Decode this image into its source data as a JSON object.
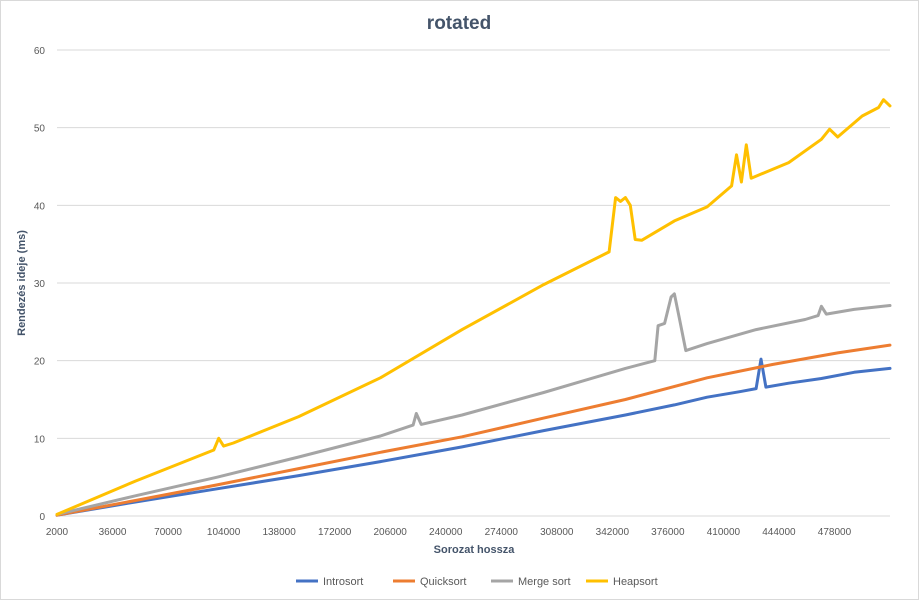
{
  "chart_data": {
    "type": "line",
    "title": "rotated",
    "xlabel": "Sorozat hossza",
    "ylabel": "Rendezés ideje (ms)",
    "xlim": [
      2000,
      512000
    ],
    "ylim": [
      0,
      60
    ],
    "yticks": [
      0,
      10,
      20,
      30,
      40,
      50,
      60
    ],
    "xticks": [
      2000,
      36000,
      70000,
      104000,
      138000,
      172000,
      206000,
      240000,
      274000,
      308000,
      342000,
      376000,
      410000,
      444000,
      478000
    ],
    "grid": "horizontal",
    "legend_position": "bottom",
    "series": [
      {
        "name": "Introsort",
        "color": "#4472c4",
        "points": [
          [
            2000,
            0.1
          ],
          [
            50000,
            1.8
          ],
          [
            100000,
            3.5
          ],
          [
            150000,
            5.2
          ],
          [
            200000,
            7.0
          ],
          [
            250000,
            8.9
          ],
          [
            300000,
            11.0
          ],
          [
            350000,
            13.0
          ],
          [
            380000,
            14.3
          ],
          [
            400000,
            15.3
          ],
          [
            420000,
            16.0
          ],
          [
            430000,
            16.4
          ],
          [
            433000,
            20.2
          ],
          [
            436000,
            16.6
          ],
          [
            450000,
            17.1
          ],
          [
            470000,
            17.7
          ],
          [
            490000,
            18.5
          ],
          [
            512000,
            19.0
          ]
        ]
      },
      {
        "name": "Quicksort",
        "color": "#ed7d31",
        "points": [
          [
            2000,
            0.1
          ],
          [
            50000,
            2.0
          ],
          [
            100000,
            4.0
          ],
          [
            150000,
            6.1
          ],
          [
            200000,
            8.2
          ],
          [
            250000,
            10.2
          ],
          [
            300000,
            12.6
          ],
          [
            350000,
            15.0
          ],
          [
            400000,
            17.8
          ],
          [
            440000,
            19.5
          ],
          [
            480000,
            21.0
          ],
          [
            512000,
            22.0
          ]
        ]
      },
      {
        "name": "Merge sort",
        "color": "#a5a5a5",
        "points": [
          [
            2000,
            0.2
          ],
          [
            50000,
            2.6
          ],
          [
            100000,
            5.0
          ],
          [
            150000,
            7.6
          ],
          [
            200000,
            10.3
          ],
          [
            220000,
            11.7
          ],
          [
            222000,
            13.2
          ],
          [
            225000,
            11.8
          ],
          [
            250000,
            13.0
          ],
          [
            300000,
            15.9
          ],
          [
            350000,
            19.0
          ],
          [
            368000,
            20.0
          ],
          [
            370000,
            24.5
          ],
          [
            374000,
            24.8
          ],
          [
            378000,
            28.2
          ],
          [
            380000,
            28.6
          ],
          [
            383000,
            25.5
          ],
          [
            387000,
            21.3
          ],
          [
            400000,
            22.2
          ],
          [
            430000,
            24.0
          ],
          [
            460000,
            25.3
          ],
          [
            468000,
            25.8
          ],
          [
            470000,
            27.0
          ],
          [
            473000,
            26.0
          ],
          [
            490000,
            26.6
          ],
          [
            512000,
            27.1
          ]
        ]
      },
      {
        "name": "Heapsort",
        "color": "#ffc000",
        "points": [
          [
            2000,
            0.2
          ],
          [
            50000,
            4.5
          ],
          [
            98000,
            8.5
          ],
          [
            101000,
            10.0
          ],
          [
            104000,
            9.0
          ],
          [
            110000,
            9.4
          ],
          [
            150000,
            12.8
          ],
          [
            200000,
            17.8
          ],
          [
            250000,
            24.0
          ],
          [
            300000,
            29.8
          ],
          [
            340000,
            34.0
          ],
          [
            344000,
            41.0
          ],
          [
            347000,
            40.5
          ],
          [
            350000,
            41.0
          ],
          [
            353000,
            40.0
          ],
          [
            356000,
            35.6
          ],
          [
            360000,
            35.5
          ],
          [
            380000,
            38.0
          ],
          [
            400000,
            39.8
          ],
          [
            415000,
            42.5
          ],
          [
            418000,
            46.5
          ],
          [
            421000,
            43.0
          ],
          [
            424000,
            47.8
          ],
          [
            427000,
            43.5
          ],
          [
            450000,
            45.5
          ],
          [
            470000,
            48.5
          ],
          [
            475000,
            49.8
          ],
          [
            480000,
            48.8
          ],
          [
            495000,
            51.5
          ],
          [
            505000,
            52.6
          ],
          [
            508000,
            53.6
          ],
          [
            512000,
            52.8
          ]
        ]
      }
    ]
  }
}
